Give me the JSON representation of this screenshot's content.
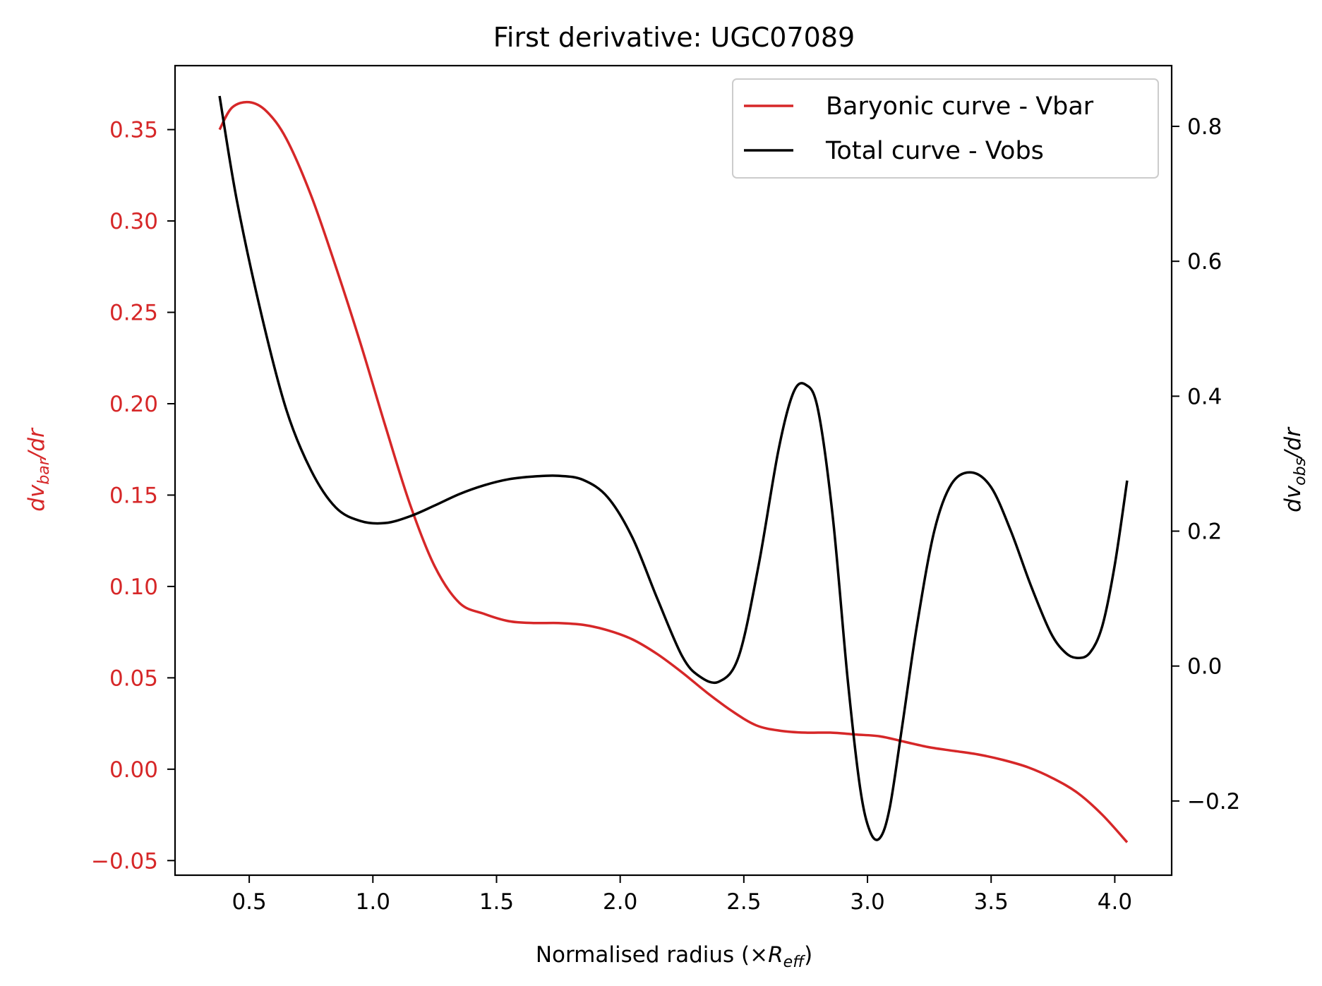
{
  "chart_data": {
    "type": "line",
    "title": "First derivative: UGC07089",
    "xlabel": {
      "prefix": "Normalised radius (×",
      "italic": "R",
      "sub": "eff",
      "suffix": ")"
    },
    "ylabel_left": {
      "d": "dv",
      "sub": "bar",
      "rest": "/dr"
    },
    "ylabel_right": {
      "d": "dv",
      "sub": "obs",
      "rest": "/dr"
    },
    "xlim": [
      0.2,
      4.23
    ],
    "ylim_left": [
      -0.058,
      0.385
    ],
    "ylim_right": [
      -0.31,
      0.89
    ],
    "x_ticks": [
      0.5,
      1.0,
      1.5,
      2.0,
      2.5,
      3.0,
      3.5,
      4.0
    ],
    "x_tick_labels": [
      "0.5",
      "1.0",
      "1.5",
      "2.0",
      "2.5",
      "3.0",
      "3.5",
      "4.0"
    ],
    "y_left_ticks": [
      -0.05,
      0.0,
      0.05,
      0.1,
      0.15,
      0.2,
      0.25,
      0.3,
      0.35
    ],
    "y_left_tick_labels": [
      "−0.05",
      "0.00",
      "0.05",
      "0.10",
      "0.15",
      "0.20",
      "0.25",
      "0.30",
      "0.35"
    ],
    "y_right_ticks": [
      -0.2,
      0.0,
      0.2,
      0.4,
      0.6,
      0.8
    ],
    "y_right_tick_labels": [
      "−0.2",
      "0.0",
      "0.2",
      "0.4",
      "0.6",
      "0.8"
    ],
    "legend_position": "top-right",
    "grid": false,
    "series": [
      {
        "name": "Baryonic curve - Vbar",
        "axis": "left",
        "color": "#d62728",
        "x": [
          0.38,
          0.43,
          0.5,
          0.57,
          0.65,
          0.75,
          0.85,
          0.95,
          1.05,
          1.15,
          1.25,
          1.35,
          1.45,
          1.55,
          1.65,
          1.75,
          1.85,
          1.95,
          2.05,
          2.15,
          2.25,
          2.35,
          2.45,
          2.55,
          2.65,
          2.75,
          2.85,
          2.95,
          3.05,
          3.15,
          3.25,
          3.35,
          3.45,
          3.55,
          3.65,
          3.75,
          3.85,
          3.95,
          4.05
        ],
        "y": [
          0.35,
          0.362,
          0.365,
          0.36,
          0.345,
          0.314,
          0.275,
          0.233,
          0.188,
          0.145,
          0.111,
          0.091,
          0.085,
          0.081,
          0.08,
          0.08,
          0.079,
          0.076,
          0.071,
          0.063,
          0.053,
          0.042,
          0.032,
          0.024,
          0.021,
          0.02,
          0.02,
          0.019,
          0.018,
          0.015,
          0.012,
          0.01,
          0.008,
          0.005,
          0.001,
          -0.005,
          -0.013,
          -0.025,
          -0.04
        ]
      },
      {
        "name": "Total curve - Vobs",
        "axis": "right",
        "color": "#000000",
        "x": [
          0.38,
          0.45,
          0.55,
          0.65,
          0.75,
          0.85,
          0.95,
          1.05,
          1.15,
          1.25,
          1.35,
          1.45,
          1.55,
          1.65,
          1.75,
          1.85,
          1.95,
          2.05,
          2.15,
          2.25,
          2.32,
          2.4,
          2.48,
          2.56,
          2.64,
          2.7,
          2.75,
          2.8,
          2.86,
          2.92,
          2.97,
          3.01,
          3.05,
          3.09,
          3.14,
          3.2,
          3.27,
          3.34,
          3.42,
          3.5,
          3.58,
          3.66,
          3.74,
          3.8,
          3.85,
          3.9,
          3.95,
          4.0,
          4.05
        ],
        "y": [
          0.845,
          0.69,
          0.52,
          0.38,
          0.29,
          0.235,
          0.215,
          0.212,
          0.222,
          0.238,
          0.255,
          0.268,
          0.277,
          0.281,
          0.282,
          0.276,
          0.25,
          0.19,
          0.1,
          0.015,
          -0.015,
          -0.023,
          0.015,
          0.15,
          0.32,
          0.405,
          0.417,
          0.38,
          0.22,
          -0.02,
          -0.18,
          -0.245,
          -0.255,
          -0.21,
          -0.09,
          0.06,
          0.2,
          0.27,
          0.287,
          0.265,
          0.2,
          0.12,
          0.05,
          0.02,
          0.012,
          0.02,
          0.06,
          0.15,
          0.275
        ]
      }
    ]
  }
}
